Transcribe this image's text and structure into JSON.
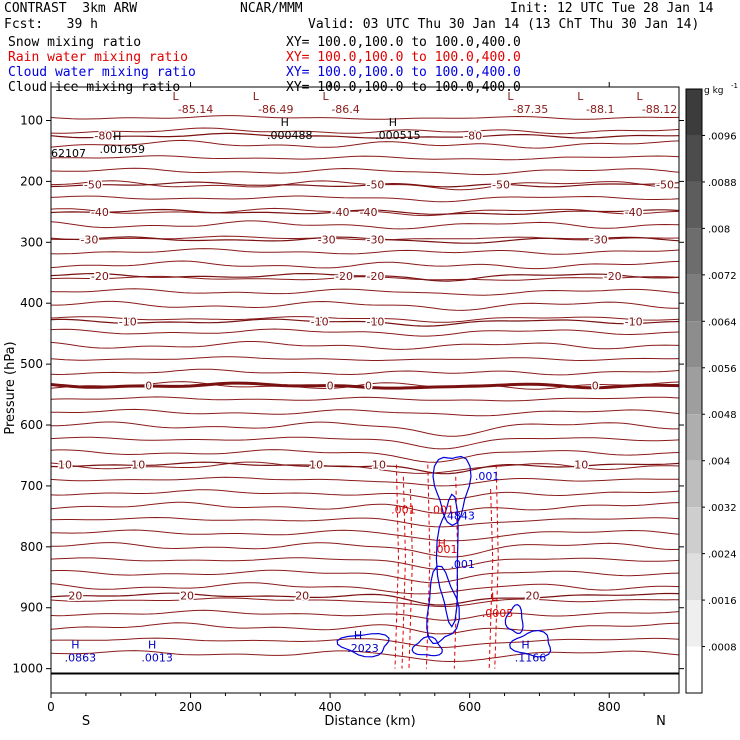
{
  "header": {
    "model": "CONTRAST  3km ARW",
    "org": "NCAR/MMM",
    "init": "Init: 12 UTC Tue 28 Jan 14",
    "fcst": "Fcst:   39 h",
    "valid": "Valid: 03 UTC Thu 30 Jan 14 (13 ChT Thu 30 Jan 14)",
    "fields": [
      {
        "name": "Snow mixing ratio",
        "xy": "XY= 100.0,100.0 to 100.0,400.0",
        "color": "#000000"
      },
      {
        "name": "Rain water mixing ratio",
        "xy": "XY= 100.0,100.0 to 100.0,400.0",
        "color": "#e00000"
      },
      {
        "name": "Cloud water mixing ratio",
        "xy": "XY= 100.0,100.0 to 100.0,400.0",
        "color": "#0000e0"
      },
      {
        "name": "Cloud ice mixing ratio",
        "xy": "XY= 100.0,100.0 to 100.0,400.0",
        "color": "#000000"
      }
    ]
  },
  "chart_data": {
    "type": "cross-section contour",
    "xlabel": "Distance (km)",
    "ylabel": "Pressure (hPa)",
    "xlim": [
      0,
      900
    ],
    "ylim": [
      1040,
      45
    ],
    "xticks": [
      0,
      200,
      400,
      600,
      800
    ],
    "yticks": [
      100,
      200,
      300,
      400,
      500,
      600,
      700,
      800,
      900,
      1000
    ],
    "endpoints": {
      "left": "S",
      "right": "N"
    },
    "colorbar": {
      "unit": "g kg",
      "unit_exp": "-1",
      "labels": [
        "0.0096",
        "0.0088",
        "0.008",
        "0.0072",
        "0.0064",
        "0.0056",
        "0.0048",
        "0.004",
        "0.0032",
        "0.0024",
        "0.0016",
        "0.0008"
      ],
      "display_labels": [
        ".0096",
        ".0088",
        ".008",
        ".0072",
        ".0064",
        ".0056",
        ".0048",
        ".004",
        ".0032",
        ".0024",
        ".0016",
        ".0008"
      ],
      "values": [
        0.0096,
        0.0088,
        0.008,
        0.0072,
        0.0064,
        0.0056,
        0.0048,
        0.004,
        0.0032,
        0.0024,
        0.0016,
        0.0008
      ]
    },
    "temperature_isotherms_C": [
      {
        "value": -80,
        "p": 125,
        "labels": [
          {
            "text": "-80",
            "x": 75
          },
          {
            "text": "-80",
            "x": 605
          }
        ]
      },
      {
        "value": -50,
        "p": 205,
        "labels": [
          {
            "text": "-50",
            "x": 60
          },
          {
            "text": "-50",
            "x": 465
          },
          {
            "text": "-50",
            "x": 645
          },
          {
            "text": "-50",
            "x": 880
          }
        ]
      },
      {
        "value": -40,
        "p": 250,
        "labels": [
          {
            "text": "-40",
            "x": 70
          },
          {
            "text": "-40",
            "x": 415
          },
          {
            "text": "-40",
            "x": 455
          },
          {
            "text": "-40",
            "x": 835
          }
        ]
      },
      {
        "value": -30,
        "p": 295,
        "labels": [
          {
            "text": "-30",
            "x": 55
          },
          {
            "text": "-30",
            "x": 395
          },
          {
            "text": "-30",
            "x": 465
          },
          {
            "text": "-30",
            "x": 785
          }
        ]
      },
      {
        "value": -20,
        "p": 355,
        "labels": [
          {
            "text": "-20",
            "x": 70
          },
          {
            "text": "-20",
            "x": 420
          },
          {
            "text": "-20",
            "x": 465
          },
          {
            "text": "-20",
            "x": 805
          }
        ]
      },
      {
        "value": -10,
        "p": 430,
        "labels": [
          {
            "text": "-10",
            "x": 110
          },
          {
            "text": "-10",
            "x": 385
          },
          {
            "text": "-10",
            "x": 465
          },
          {
            "text": "-10",
            "x": 835
          }
        ]
      },
      {
        "value": 0,
        "p": 535,
        "labels": [
          {
            "text": "0",
            "x": 140
          },
          {
            "text": "0",
            "x": 400
          },
          {
            "text": "0",
            "x": 455
          },
          {
            "text": "0",
            "x": 780
          }
        ]
      },
      {
        "value": 10,
        "p": 665,
        "labels": [
          {
            "text": "10",
            "x": 20
          },
          {
            "text": "10",
            "x": 125
          },
          {
            "text": "10",
            "x": 380
          },
          {
            "text": "10",
            "x": 470
          },
          {
            "text": "10",
            "x": 760
          }
        ]
      },
      {
        "value": 20,
        "p": 880,
        "labels": [
          {
            "text": "20",
            "x": 35
          },
          {
            "text": "20",
            "x": 195
          },
          {
            "text": "20",
            "x": 360
          },
          {
            "text": "20",
            "x": 690
          }
        ]
      }
    ],
    "extrema": [
      {
        "kind": "L",
        "value": "-85.14",
        "x": 200,
        "p": 70
      },
      {
        "kind": "L",
        "value": "-86.49",
        "x": 315,
        "p": 70
      },
      {
        "kind": "L",
        "value": "-86.4",
        "x": 415,
        "p": 70
      },
      {
        "kind": "L",
        "value": "-87.35",
        "x": 680,
        "p": 70
      },
      {
        "kind": "L",
        "value": "-88.1",
        "x": 780,
        "p": 70
      },
      {
        "kind": "L",
        "value": "-88.12",
        "x": 865,
        "p": 70
      },
      {
        "kind": "H",
        "value": ".000488",
        "x": 335,
        "p": 112
      },
      {
        "kind": "H",
        "value": ".000515",
        "x": 490,
        "p": 112
      },
      {
        "kind": "H",
        "value": ".001659",
        "x": 95,
        "p": 135
      },
      {
        "kind": "H",
        "value": ".0863",
        "x": 35,
        "p": 970
      },
      {
        "kind": "H",
        "value": ".0013",
        "x": 145,
        "p": 970
      },
      {
        "kind": "H",
        "value": ".2023",
        "x": 440,
        "p": 955
      },
      {
        "kind": "H",
        "value": ".1166",
        "x": 680,
        "p": 970
      }
    ],
    "edge_text": {
      "left_value": "62107",
      "dash": "-"
    },
    "rain_labels": [
      ".001",
      ".001",
      ".001",
      ".0005"
    ],
    "cloud_labels": [
      ".001",
      ".4843",
      ".001"
    ],
    "surface_p": 1008
  }
}
